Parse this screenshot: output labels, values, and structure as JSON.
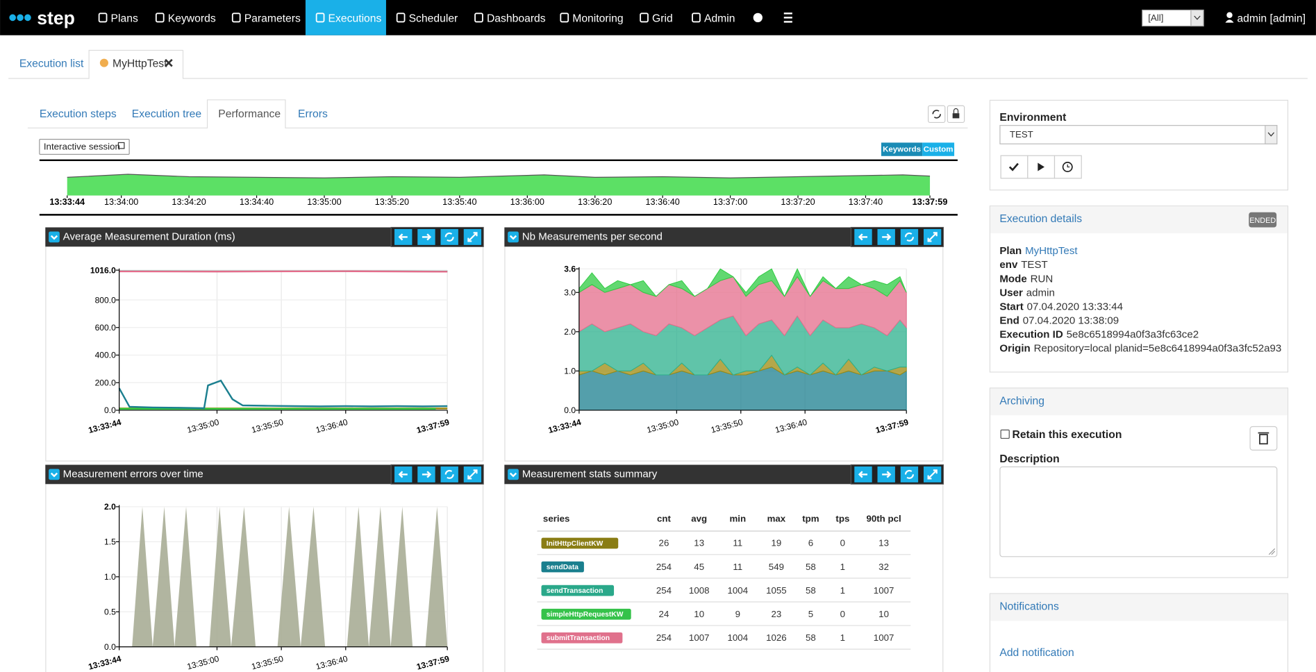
{
  "nav": {
    "brand": "step",
    "items": [
      "Plans",
      "Keywords",
      "Parameters",
      "Executions",
      "Scheduler",
      "Dashboards",
      "Monitoring",
      "Grid",
      "Admin"
    ],
    "active": "Executions",
    "tenant": "[All]",
    "user": "admin [admin]"
  },
  "tabs": [
    "Execution list",
    "MyHttpTest"
  ],
  "subtabs": {
    "items": [
      "Execution steps",
      "Execution tree",
      "Performance",
      "Errors"
    ],
    "active": "Performance"
  },
  "toolbar": {
    "session": "Interactive session",
    "toggle": [
      "Keywords",
      "Custom"
    ]
  },
  "timeline": {
    "xlim": [
      "13:33:44",
      "13:37:59"
    ],
    "xticks": [
      "13:33:44",
      "13:34:00",
      "13:34:20",
      "13:34:40",
      "13:35:00",
      "13:35:20",
      "13:35:40",
      "13:36:00",
      "13:36:20",
      "13:36:40",
      "13:37:00",
      "13:37:20",
      "13:37:40",
      "13:37:59"
    ],
    "x": [
      "13:33:44",
      "13:34:02",
      "13:34:20",
      "13:34:40",
      "13:35:00",
      "13:35:20",
      "13:35:40",
      "13:36:05",
      "13:36:20",
      "13:36:40",
      "13:37:00",
      "13:37:20",
      "13:37:51",
      "13:37:59"
    ],
    "values": [
      3.0,
      3.5,
      3.1,
      3.0,
      2.9,
      3.1,
      3.0,
      3.4,
      3.0,
      3.1,
      2.9,
      3.1,
      3.4,
      3.2
    ],
    "ylim": [
      0,
      3.6
    ],
    "color": "#5ce065"
  },
  "charts": [
    {
      "type": "line",
      "title": "Average Measurement Duration (ms)",
      "xlim": [
        "13:33:44",
        "13:37:59"
      ],
      "xticks": [
        "13:33:44",
        "13:35:00",
        "13:35:50",
        "13:36:40",
        "13:37:59"
      ],
      "ylim": [
        0,
        1016
      ],
      "yticks": [
        {
          "value": 0,
          "label": "0.0"
        },
        {
          "value": 200,
          "label": "200.0"
        },
        {
          "value": 400,
          "label": "400.0"
        },
        {
          "value": 600,
          "label": "600.0"
        },
        {
          "value": 800,
          "label": "800.0"
        },
        {
          "value": 1016,
          "label": "1016.0"
        }
      ],
      "series": [
        {
          "name": "sendTransaction",
          "color": "#2bb08c",
          "x": [
            "13:33:44",
            "13:35:00",
            "13:36:40",
            "13:37:59"
          ],
          "values": [
            1008,
            1007,
            1009,
            1006
          ]
        },
        {
          "name": "submitTransaction",
          "color": "#e46c8b",
          "x": [
            "13:33:44",
            "13:35:00",
            "13:36:40",
            "13:37:59"
          ],
          "values": [
            1007,
            1006,
            1008,
            1005
          ]
        },
        {
          "name": "InitHttpClientKW",
          "color": "#9c8a0e",
          "x": [
            "13:33:44",
            "13:37:59"
          ],
          "values": [
            13,
            13
          ]
        },
        {
          "name": "simpleHttpRequestKW",
          "color": "#2ecb41",
          "x": [
            "13:33:44",
            "13:37:50"
          ],
          "values": [
            10,
            10
          ]
        },
        {
          "name": "sendData",
          "color": "#1b7f8f",
          "x": [
            "13:33:44",
            "13:33:52",
            "13:34:10",
            "13:34:30",
            "13:34:50",
            "13:34:53",
            "13:35:03",
            "13:35:12",
            "13:35:20",
            "13:35:40",
            "13:36:00",
            "13:36:20",
            "13:36:40",
            "13:37:00",
            "13:37:20",
            "13:37:40",
            "13:37:59"
          ],
          "values": [
            160,
            25,
            20,
            18,
            15,
            180,
            215,
            80,
            35,
            32,
            30,
            28,
            30,
            28,
            30,
            28,
            30
          ]
        }
      ]
    },
    {
      "type": "stacked_area",
      "title": "Nb Measurements per second",
      "xlim": [
        "13:33:44",
        "13:37:59"
      ],
      "xticks": [
        "13:33:44",
        "13:35:00",
        "13:35:50",
        "13:36:40",
        "13:37:59"
      ],
      "ylim": [
        0,
        3.6
      ],
      "yticks": [
        {
          "value": 0,
          "label": "0.0"
        },
        {
          "value": 1,
          "label": "1.0"
        },
        {
          "value": 2,
          "label": "2.0"
        },
        {
          "value": 3,
          "label": "3.0"
        },
        3.6
      ],
      "x": [
        "13:33:44",
        "13:33:54",
        "13:34:04",
        "13:34:14",
        "13:34:24",
        "13:34:34",
        "13:34:44",
        "13:34:54",
        "13:35:04",
        "13:35:14",
        "13:35:24",
        "13:35:34",
        "13:35:44",
        "13:35:54",
        "13:36:04",
        "13:36:14",
        "13:36:24",
        "13:36:34",
        "13:36:44",
        "13:36:54",
        "13:37:04",
        "13:37:14",
        "13:37:24",
        "13:37:34",
        "13:37:44",
        "13:37:54",
        "13:37:59"
      ],
      "series": [
        {
          "name": "sendData",
          "color": "#1b7f8f",
          "values": [
            0.9,
            1.0,
            0.9,
            1.0,
            0.9,
            1.0,
            0.9,
            0.9,
            1.0,
            0.9,
            0.9,
            1.0,
            0.9,
            0.9,
            1.0,
            1.1,
            0.9,
            1.0,
            0.9,
            1.0,
            0.9,
            1.0,
            0.9,
            1.0,
            1.0,
            0.9,
            1.0
          ]
        },
        {
          "name": "InitHttpClientKW",
          "color": "#9c8a0e",
          "values": [
            0.1,
            0,
            0.3,
            0,
            0.1,
            0.2,
            0,
            0,
            0.2,
            0,
            0,
            0.3,
            0,
            0.1,
            0,
            0.3,
            0,
            0.1,
            0,
            0.2,
            0,
            0.3,
            0,
            0.1,
            0,
            0.2,
            0.1
          ]
        },
        {
          "name": "sendTransaction",
          "color": "#2bb08c",
          "values": [
            1.0,
            1.2,
            0.8,
            1.1,
            1.2,
            0.8,
            1.0,
            1.3,
            0.9,
            1.0,
            1.2,
            1.0,
            1.5,
            0.9,
            1.2,
            0.9,
            1.0,
            1.3,
            1.0,
            1.1,
            1.2,
            0.8,
            1.3,
            1.0,
            0.9,
            1.2,
            1.0
          ]
        },
        {
          "name": "submitTransaction",
          "color": "#e46c8b",
          "values": [
            1.0,
            1.0,
            1.0,
            1.0,
            1.0,
            1.0,
            1.0,
            1.0,
            1.0,
            1.0,
            1.0,
            1.0,
            1.0,
            1.0,
            1.0,
            1.0,
            1.0,
            1.0,
            1.0,
            1.0,
            1.0,
            1.0,
            1.0,
            1.0,
            1.0,
            1.0,
            0.9
          ]
        },
        {
          "name": "simpleHttpRequestKW",
          "color": "#2ecb41",
          "values": [
            0.1,
            0.3,
            0.1,
            0.2,
            0,
            0.3,
            0,
            0,
            0.2,
            0,
            0,
            0.3,
            0,
            0.1,
            0.2,
            0.3,
            0,
            0.2,
            0,
            0.1,
            0,
            0.3,
            0,
            0.2,
            0.3,
            0.1,
            0
          ]
        }
      ]
    },
    {
      "type": "area",
      "title": "Measurement errors over time",
      "color": "#a9ad96",
      "xlim": [
        "13:33:44",
        "13:37:59"
      ],
      "xticks": [
        "13:33:44",
        "13:35:00",
        "13:35:50",
        "13:36:40",
        "13:37:59"
      ],
      "ylim": [
        0,
        2
      ],
      "yticks": [
        {
          "value": 0,
          "label": "0.0"
        },
        0.5,
        {
          "value": 1,
          "label": "1.0"
        },
        1.5,
        {
          "value": 2,
          "label": "2.0"
        }
      ],
      "x": [
        "13:33:44",
        "13:33:54",
        "13:34:02",
        "13:34:10",
        "13:34:19",
        "13:34:27",
        "13:34:36",
        "13:34:44",
        "13:34:54",
        "13:35:02",
        "13:35:11",
        "13:35:21",
        "13:35:30",
        "13:35:47",
        "13:35:56",
        "13:36:05",
        "13:36:15",
        "13:36:24",
        "13:36:41",
        "13:36:50",
        "13:36:58",
        "13:37:07",
        "13:37:15",
        "13:37:24",
        "13:37:32",
        "13:37:42",
        "13:37:51",
        "13:37:59"
      ],
      "values": [
        0,
        0,
        2,
        0,
        2,
        0,
        2,
        0,
        0,
        2,
        0,
        2,
        0,
        0,
        2,
        0,
        2,
        0,
        0,
        2,
        0,
        2,
        0,
        2,
        0,
        0,
        2,
        0
      ]
    }
  ],
  "stats": {
    "title": "Measurement stats summary",
    "columns": [
      "series",
      "cnt",
      "avg",
      "min",
      "max",
      "tpm",
      "tps",
      "90th pcl"
    ],
    "rows": [
      [
        "InitHttpClientKW",
        26,
        13,
        11,
        19,
        6,
        0,
        13
      ],
      [
        "sendData",
        254,
        45,
        11,
        549,
        58,
        1,
        32
      ],
      [
        "sendTransaction",
        254,
        1008,
        1004,
        1055,
        58,
        1,
        1007
      ],
      [
        "simpleHttpRequestKW",
        24,
        10,
        9,
        23,
        5,
        0,
        10
      ],
      [
        "submitTransaction",
        254,
        1007,
        1004,
        1026,
        58,
        1,
        1007
      ]
    ],
    "row_colors": [
      "#8a7d14",
      "#1a7f8e",
      "#2aa88a",
      "#35c24a",
      "#e0718c"
    ]
  },
  "environment": {
    "label": "Environment",
    "value": "TEST"
  },
  "details": {
    "title": "Execution details",
    "status": "ENDED",
    "fields": [
      [
        "Plan",
        "MyHttpTest"
      ],
      [
        "env",
        "TEST"
      ],
      [
        "Mode",
        "RUN"
      ],
      [
        "User",
        "admin"
      ],
      [
        "Start",
        "07.04.2020 13:33:44"
      ],
      [
        "End",
        "07.04.2020 13:38:09"
      ],
      [
        "Execution ID",
        "5e8c6518994a0f3a3fc63ce2"
      ],
      [
        "Origin",
        "Repository=local planid=5e8c6418994a0f3a3fc52a93"
      ]
    ]
  },
  "archiving": {
    "title": "Archiving",
    "retain": "Retain this execution",
    "description": "Description"
  },
  "notifications": {
    "title": "Notifications",
    "add": "Add notification"
  }
}
